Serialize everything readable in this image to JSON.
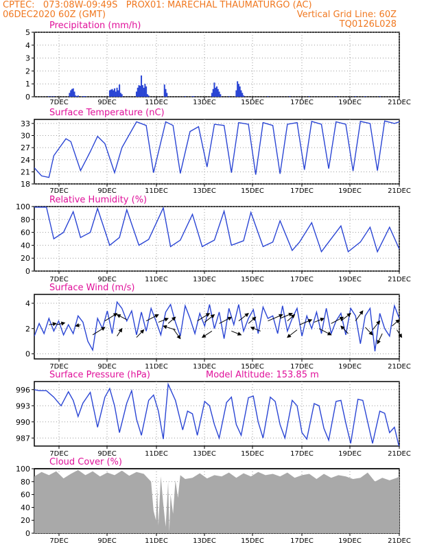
{
  "header": {
    "left_line1": "CPTEC:   073:08W-09:49S   PROX01: MARECHAL THAUMATURGO (AC)",
    "left_line2": "06DEC2020 60Z (GMT)",
    "right_line2": "Vertical Grid Line: 60Z",
    "right_line3": "TQ0126L028"
  },
  "colors": {
    "header": "#f07820",
    "title": "#e0109a",
    "line": "#2a45d4",
    "cloud": "#a9a9a9",
    "grid": "#9a9a9a"
  },
  "x_tick_labels": [
    "7DEC",
    "9DEC",
    "11DEC",
    "13DEC",
    "15DEC",
    "17DEC",
    "19DEC",
    "21DEC"
  ],
  "chart_data": [
    {
      "type": "bar",
      "title": "Precipitation (mm/h)",
      "ylim": [
        0,
        5
      ],
      "yticks": [
        0,
        1,
        2,
        3,
        4,
        5
      ],
      "x": [
        0.6,
        0.7,
        0.8,
        1.45,
        1.5,
        1.55,
        1.6,
        1.65,
        1.7,
        1.75,
        1.8,
        2.0,
        2.05,
        2.1,
        3.1,
        3.15,
        3.2,
        3.25,
        3.3,
        3.35,
        3.4,
        3.45,
        3.5,
        3.55,
        3.6,
        4.2,
        4.25,
        4.3,
        4.35,
        4.4,
        4.45,
        4.5,
        4.55,
        4.6,
        4.65,
        4.7,
        5.35,
        5.4,
        5.45,
        6.2,
        6.5,
        6.55,
        7.3,
        7.35,
        7.4,
        7.45,
        7.5,
        7.55,
        7.6,
        7.65,
        8.0,
        8.3,
        8.35,
        8.4,
        8.45,
        8.5,
        8.55,
        8.6,
        9.6,
        10.5,
        11.3,
        12.4,
        13.2,
        13.6,
        14.2
      ],
      "values": [
        0.05,
        0.04,
        0.05,
        0.3,
        0.5,
        0.6,
        0.65,
        0.4,
        0.1,
        0.05,
        0.1,
        0.05,
        0.05,
        0.05,
        0.5,
        0.55,
        0.6,
        0.5,
        0.65,
        0.4,
        0.7,
        0.5,
        0.95,
        0.3,
        0.2,
        0.4,
        0.7,
        0.9,
        0.85,
        1.65,
        0.9,
        0.7,
        1.0,
        0.8,
        0.2,
        0.1,
        0.95,
        0.6,
        0.3,
        0.05,
        0.05,
        0.05,
        0.3,
        0.6,
        1.1,
        0.7,
        0.8,
        0.6,
        0.4,
        0.2,
        0.05,
        0.5,
        1.2,
        1.0,
        0.8,
        0.5,
        0.3,
        0.1,
        0.05,
        0.05,
        0.05,
        0.05,
        0.05,
        0.05,
        0.05
      ],
      "xlim": [
        0,
        15
      ]
    },
    {
      "type": "line",
      "title": "Surface Temperature (nC)",
      "ylim": [
        18,
        34
      ],
      "yticks": [
        18,
        21,
        24,
        27,
        30,
        33
      ],
      "x": [
        0,
        0.3,
        0.6,
        0.8,
        1.3,
        1.5,
        1.9,
        2.3,
        2.6,
        2.9,
        3.3,
        3.6,
        4.2,
        4.6,
        4.9,
        5.4,
        5.7,
        6.0,
        6.4,
        6.75,
        7.1,
        7.4,
        7.8,
        8.1,
        8.4,
        8.8,
        9.1,
        9.4,
        9.8,
        10.1,
        10.4,
        10.8,
        11.1,
        11.4,
        11.8,
        12.1,
        12.4,
        12.8,
        13.1,
        13.4,
        13.8,
        14.1,
        14.4,
        14.8,
        15.0
      ],
      "values": [
        22,
        20,
        19.6,
        25,
        29.2,
        28.5,
        21.3,
        26,
        29.8,
        28,
        20.8,
        27,
        33.4,
        32.5,
        20.8,
        33.4,
        32.5,
        20.6,
        31,
        32.2,
        22.2,
        32.8,
        32.5,
        20.8,
        33.2,
        32.8,
        20.3,
        33.2,
        32.5,
        20.5,
        32.8,
        33.2,
        21.5,
        33.5,
        32.8,
        21.8,
        33.4,
        32.8,
        21.2,
        33.5,
        33.0,
        21.3,
        33.6,
        33.0,
        33.4
      ],
      "xlim": [
        0,
        15
      ]
    },
    {
      "type": "line",
      "title": "Relative Humidity (%)",
      "ylim": [
        0,
        100
      ],
      "yticks": [
        0,
        20,
        40,
        60,
        80,
        100
      ],
      "x": [
        0,
        0.5,
        0.8,
        1.2,
        1.6,
        1.9,
        2.3,
        2.6,
        3.1,
        3.5,
        3.8,
        4.3,
        4.7,
        5.3,
        5.6,
        6.0,
        6.5,
        6.9,
        7.4,
        7.8,
        8.1,
        8.6,
        8.9,
        9.4,
        9.8,
        10.1,
        10.6,
        10.9,
        11.4,
        11.8,
        12.1,
        12.6,
        12.9,
        13.4,
        13.8,
        14.1,
        14.6,
        15.0
      ],
      "values": [
        99,
        99,
        50,
        60,
        92,
        52,
        60,
        97,
        40,
        52,
        95,
        40,
        49,
        98,
        38,
        48,
        88,
        38,
        48,
        93,
        40,
        47,
        91,
        38,
        45,
        78,
        32,
        45,
        75,
        30,
        45,
        70,
        30,
        45,
        68,
        30,
        68,
        34
      ],
      "xlim": [
        0,
        15
      ]
    },
    {
      "type": "line",
      "title": "Surface Wind (m/s)",
      "ylim": [
        -0.4,
        4.7
      ],
      "yticks": [
        0,
        2,
        4
      ],
      "x": [
        0,
        0.2,
        0.4,
        0.6,
        0.8,
        1.0,
        1.2,
        1.4,
        1.6,
        1.8,
        2.0,
        2.2,
        2.4,
        2.6,
        2.8,
        3.0,
        3.2,
        3.4,
        3.6,
        3.8,
        4.0,
        4.2,
        4.4,
        4.6,
        4.8,
        5.0,
        5.2,
        5.4,
        5.6,
        5.8,
        6.0,
        6.2,
        6.4,
        6.6,
        6.8,
        7.0,
        7.2,
        7.4,
        7.6,
        7.8,
        8.0,
        8.2,
        8.4,
        8.6,
        8.8,
        9.0,
        9.2,
        9.4,
        9.6,
        9.8,
        10.0,
        10.2,
        10.4,
        10.6,
        10.8,
        11.0,
        11.2,
        11.4,
        11.6,
        11.8,
        12.0,
        12.2,
        12.4,
        12.6,
        12.8,
        13.0,
        13.2,
        13.4,
        13.6,
        13.8,
        14.0,
        14.2,
        14.4,
        14.6,
        14.8,
        15.0
      ],
      "values": [
        1.4,
        2.4,
        1.6,
        2.8,
        1.8,
        2.6,
        1.5,
        2.3,
        1.6,
        3.0,
        2.5,
        1.0,
        0.3,
        2.8,
        2.0,
        3.4,
        1.6,
        4.1,
        3.6,
        2.6,
        3.4,
        1.5,
        3.3,
        1.8,
        3.6,
        2.6,
        1.5,
        3.3,
        3.9,
        2.5,
        1.4,
        3.8,
        2.8,
        1.6,
        3.2,
        2.2,
        3.9,
        2.0,
        3.3,
        1.2,
        3.6,
        2.3,
        3.9,
        1.8,
        2.8,
        3.5,
        1.6,
        3.7,
        2.8,
        3.0,
        1.6,
        3.8,
        1.8,
        2.8,
        3.6,
        1.4,
        3.0,
        2.0,
        3.3,
        1.6,
        3.6,
        1.6,
        2.6,
        3.2,
        1.5,
        3.6,
        3.0,
        0.8,
        3.0,
        3.6,
        0.2,
        3.2,
        2.0,
        1.4,
        3.8,
        2.8
      ],
      "xlim": [
        0,
        15
      ],
      "vectors": [
        [
          0.6,
          2.3,
          0.3,
          0.1
        ],
        [
          0.9,
          2.3,
          0.35,
          0.15
        ],
        [
          1.9,
          2.3,
          -0.2,
          -0.1
        ],
        [
          2.4,
          1.5,
          0.5,
          0.6
        ],
        [
          2.9,
          2.6,
          0.5,
          0.6
        ],
        [
          3.4,
          1.4,
          0.2,
          0.6
        ],
        [
          3.8,
          2.7,
          -0.4,
          0.4
        ],
        [
          4.2,
          1.3,
          0.3,
          0.6
        ],
        [
          4.6,
          2.6,
          0.5,
          0.5
        ],
        [
          5.1,
          2.5,
          0.4,
          0.3
        ],
        [
          5.5,
          2.4,
          0.3,
          0.5
        ],
        [
          5.8,
          1.9,
          -0.5,
          0.3
        ],
        [
          5.7,
          2.0,
          0.3,
          -0.8
        ],
        [
          6.7,
          2.6,
          0.5,
          0.6
        ],
        [
          7.0,
          2.5,
          0.4,
          0.6
        ],
        [
          7.3,
          1.8,
          -0.4,
          -0.5
        ],
        [
          7.6,
          2.4,
          0.5,
          0.5
        ],
        [
          8.1,
          1.8,
          0.4,
          -0.3
        ],
        [
          8.4,
          2.6,
          0.4,
          0.6
        ],
        [
          8.8,
          2.4,
          0.3,
          0.5
        ],
        [
          9.3,
          1.8,
          -0.4,
          0.3
        ],
        [
          9.6,
          2.6,
          0.6,
          0.5
        ],
        [
          10.1,
          2.8,
          0.5,
          0.4
        ],
        [
          10.4,
          2.6,
          0.3,
          0.5
        ],
        [
          10.8,
          1.9,
          -0.4,
          -0.6
        ],
        [
          10.9,
          2.3,
          0.5,
          0.4
        ],
        [
          11.5,
          2.5,
          0.4,
          0.3
        ],
        [
          11.7,
          2.0,
          0.5,
          -0.5
        ],
        [
          12.2,
          2.4,
          0.5,
          0.5
        ],
        [
          12.6,
          2.6,
          0.4,
          0.6
        ],
        [
          12.9,
          1.6,
          -0.3,
          0.6
        ],
        [
          13.2,
          2.6,
          0.3,
          0.8
        ],
        [
          13.6,
          2.1,
          0.3,
          -0.6
        ],
        [
          13.9,
          1.9,
          0.3,
          0.7
        ],
        [
          14.3,
          1.6,
          -0.2,
          -0.8
        ],
        [
          14.7,
          2.2,
          0.3,
          0.5
        ],
        [
          14.9,
          1.9,
          0.2,
          -0.6
        ]
      ]
    },
    {
      "type": "line",
      "title": "Surface Pressure (hPa)",
      "annotation": "Model Altitude: 153.85 m",
      "ylim": [
        985.5,
        997.5
      ],
      "yticks": [
        987,
        990,
        993,
        996
      ],
      "x": [
        0,
        0.2,
        0.5,
        0.8,
        1.1,
        1.4,
        1.6,
        1.8,
        2.0,
        2.3,
        2.6,
        2.9,
        3.1,
        3.3,
        3.5,
        3.8,
        4.0,
        4.2,
        4.4,
        4.7,
        4.9,
        5.1,
        5.3,
        5.5,
        5.8,
        6.1,
        6.3,
        6.5,
        6.7,
        7.0,
        7.2,
        7.4,
        7.6,
        7.9,
        8.1,
        8.3,
        8.5,
        8.8,
        9.0,
        9.2,
        9.4,
        9.7,
        9.9,
        10.1,
        10.3,
        10.6,
        10.8,
        11.0,
        11.2,
        11.5,
        11.7,
        11.9,
        12.1,
        12.4,
        12.6,
        12.8,
        13.0,
        13.3,
        13.5,
        13.7,
        13.9,
        14.2,
        14.4,
        14.6,
        14.8,
        15.0
      ],
      "values": [
        996.0,
        995.8,
        995.8,
        994.6,
        993.0,
        995.6,
        994.0,
        991.0,
        993.5,
        995.5,
        989.0,
        994.6,
        996.2,
        993.0,
        988.0,
        993.5,
        995.8,
        990.5,
        987.5,
        994.0,
        995.0,
        992.0,
        986.8,
        997.0,
        994.0,
        988.5,
        992.0,
        991.5,
        987.5,
        993.8,
        993.0,
        989.5,
        987.0,
        993.6,
        994.6,
        989.5,
        987.5,
        994.5,
        994.8,
        990.0,
        987.0,
        994.6,
        993.8,
        989.5,
        987.0,
        994.0,
        993.0,
        988.0,
        986.8,
        993.4,
        993.0,
        988.8,
        986.6,
        993.8,
        994.0,
        989.8,
        986.0,
        994.2,
        994.0,
        990.0,
        986.0,
        992.0,
        991.6,
        988.0,
        989.0,
        985.2
      ],
      "xlim": [
        0,
        15
      ]
    },
    {
      "type": "area",
      "title": "Cloud Cover (%)",
      "ylim": [
        0,
        100
      ],
      "yticks": [
        0,
        20,
        40,
        60,
        80,
        100
      ],
      "x": [
        0,
        0.3,
        0.6,
        0.9,
        1.2,
        1.5,
        1.8,
        2.1,
        2.4,
        2.7,
        3.0,
        3.3,
        3.6,
        3.9,
        4.2,
        4.5,
        4.8,
        4.9,
        5.0,
        5.05,
        5.1,
        5.2,
        5.3,
        5.4,
        5.5,
        5.55,
        5.6,
        5.7,
        5.8,
        5.9,
        6.0,
        6.2,
        6.5,
        6.8,
        7.1,
        7.4,
        7.7,
        8.0,
        8.3,
        8.6,
        8.9,
        9.2,
        9.5,
        9.8,
        10.1,
        10.4,
        10.7,
        11.0,
        11.3,
        11.6,
        11.9,
        12.2,
        12.5,
        12.8,
        13.1,
        13.4,
        13.7,
        14.0,
        14.3,
        14.6,
        14.9,
        15.0
      ],
      "values": [
        88,
        95,
        90,
        96,
        85,
        92,
        98,
        90,
        96,
        88,
        94,
        90,
        97,
        89,
        95,
        92,
        80,
        35,
        20,
        70,
        12,
        88,
        45,
        10,
        80,
        2,
        60,
        30,
        82,
        55,
        90,
        84,
        86,
        93,
        85,
        90,
        88,
        94,
        86,
        93,
        88,
        95,
        90,
        92,
        88,
        94,
        86,
        90,
        92,
        84,
        92,
        86,
        90,
        88,
        84,
        86,
        94,
        80,
        86,
        82,
        86,
        88
      ],
      "xlim": [
        0,
        15
      ]
    }
  ]
}
